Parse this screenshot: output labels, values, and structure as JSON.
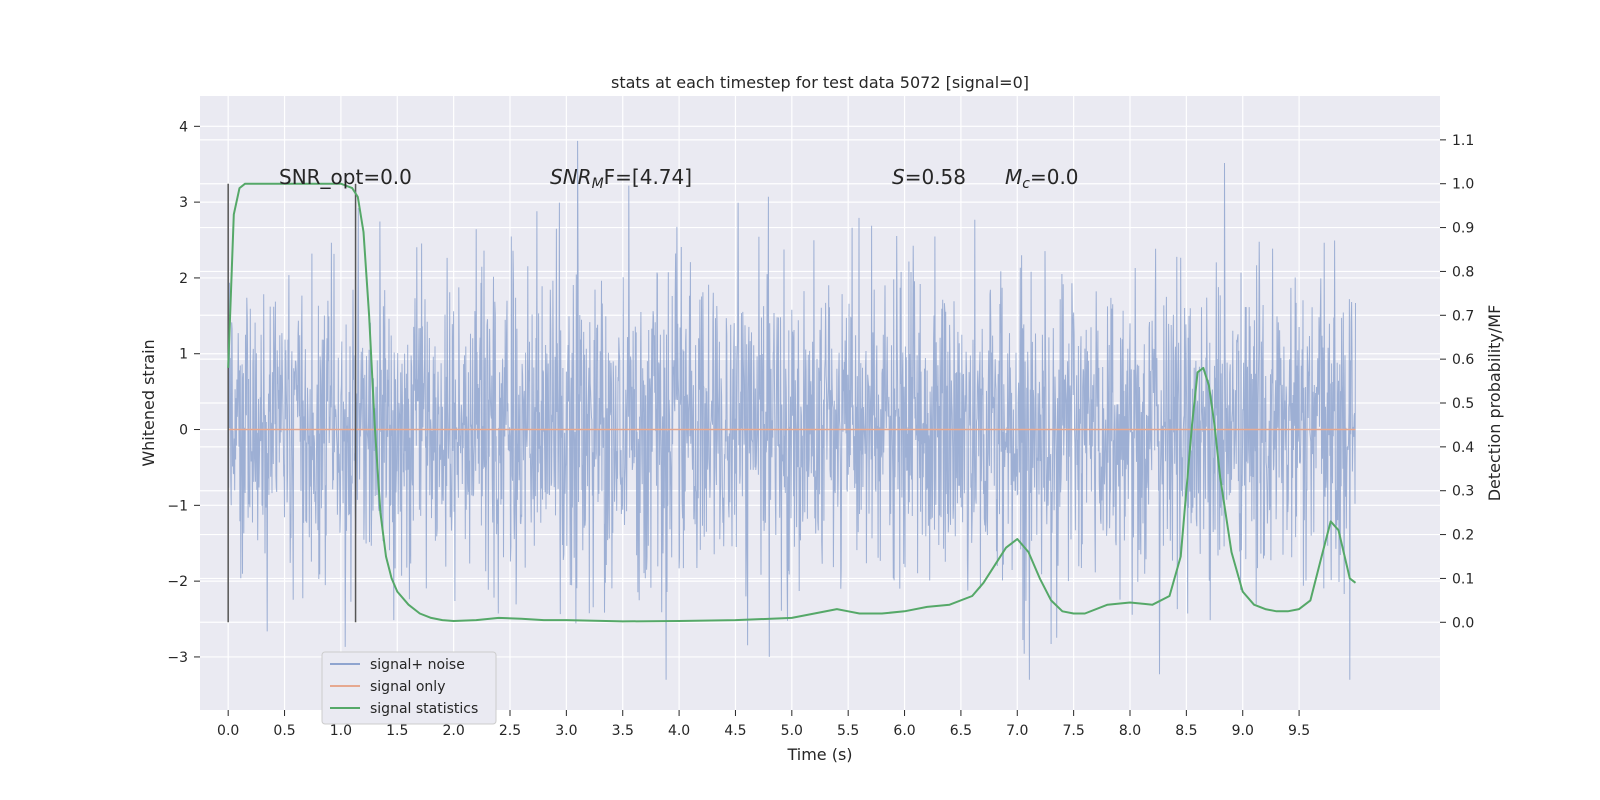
{
  "chart_data": {
    "type": "line",
    "title": "stats at each timestep for test data 5072 [signal=0]",
    "xlabel": "Time (s)",
    "ylabel_left": "Whitened strain",
    "ylabel_right": "Detection probability/MF",
    "xlim": [
      -0.25,
      10.75
    ],
    "ylim_left": [
      -3.7,
      4.4
    ],
    "ylim_right": [
      -0.2,
      1.2
    ],
    "x_ticks": [
      0.0,
      0.5,
      1.0,
      1.5,
      2.0,
      2.5,
      3.0,
      3.5,
      4.0,
      4.5,
      5.0,
      5.5,
      6.0,
      6.5,
      7.0,
      7.5,
      8.0,
      8.5,
      9.0,
      9.5
    ],
    "x_tick_labels": [
      "0.0",
      "0.5",
      "1.0",
      "1.5",
      "2.0",
      "2.5",
      "3.0",
      "3.5",
      "4.0",
      "4.5",
      "5.0",
      "5.5",
      "6.0",
      "6.5",
      "7.0",
      "7.5",
      "8.0",
      "8.5",
      "9.0",
      "9.5"
    ],
    "y_left_ticks": [
      -3,
      -2,
      -1,
      0,
      1,
      2,
      3,
      4
    ],
    "y_left_tick_labels": [
      "−3",
      "−2",
      "−1",
      "0",
      "1",
      "2",
      "3",
      "4"
    ],
    "y_right_ticks": [
      0.0,
      0.1,
      0.2,
      0.3,
      0.4,
      0.5,
      0.6,
      0.7,
      0.8,
      0.9,
      1.0,
      1.1
    ],
    "y_right_tick_labels": [
      "0.0",
      "0.1",
      "0.2",
      "0.3",
      "0.4",
      "0.5",
      "0.6",
      "0.7",
      "0.8",
      "0.9",
      "1.0",
      "1.1"
    ],
    "grid": true,
    "legend_position": "lower-left",
    "annotations": {
      "snr_opt": "SNR_opt=0.0",
      "snr_mf_main": "SNR",
      "snr_mf_sub": "M",
      "snr_mf_rest": "F=[4.74]",
      "s_main": "S",
      "s_rest": "=0.58",
      "mc_main": "M",
      "mc_sub": "c",
      "mc_rest": "=0.0"
    },
    "series": [
      {
        "name": "signal+ noise",
        "axis": "left",
        "color": "#8fa4cf",
        "x_range": [
          0.0,
          10.0
        ],
        "approx_std": 1.0,
        "approx_range": [
          -3.3,
          4.05
        ]
      },
      {
        "name": "signal only",
        "axis": "left",
        "color": "#e6a88f",
        "x": [
          0.0,
          10.0
        ],
        "y": [
          0.0,
          0.0
        ]
      },
      {
        "name": "signal statistics",
        "axis": "right",
        "color": "#55a868",
        "x": [
          0.0,
          0.05,
          0.1,
          0.15,
          0.2,
          0.3,
          0.5,
          0.7,
          0.9,
          1.0,
          1.1,
          1.15,
          1.2,
          1.25,
          1.3,
          1.35,
          1.4,
          1.45,
          1.5,
          1.6,
          1.7,
          1.8,
          1.9,
          2.0,
          2.2,
          2.4,
          2.6,
          2.8,
          3.0,
          3.5,
          4.0,
          4.5,
          5.0,
          5.2,
          5.4,
          5.5,
          5.6,
          5.8,
          6.0,
          6.2,
          6.4,
          6.6,
          6.7,
          6.8,
          6.9,
          7.0,
          7.1,
          7.2,
          7.3,
          7.4,
          7.5,
          7.6,
          7.8,
          8.0,
          8.2,
          8.35,
          8.45,
          8.55,
          8.6,
          8.65,
          8.7,
          8.75,
          8.8,
          8.9,
          9.0,
          9.1,
          9.2,
          9.3,
          9.4,
          9.5,
          9.6,
          9.7,
          9.78,
          9.85,
          9.95,
          10.0
        ],
        "y": [
          0.58,
          0.93,
          0.99,
          1.0,
          1.0,
          1.0,
          1.0,
          1.0,
          1.0,
          1.0,
          0.99,
          0.97,
          0.89,
          0.7,
          0.45,
          0.25,
          0.15,
          0.1,
          0.07,
          0.04,
          0.02,
          0.01,
          0.005,
          0.003,
          0.005,
          0.01,
          0.008,
          0.005,
          0.005,
          0.002,
          0.003,
          0.005,
          0.01,
          0.02,
          0.03,
          0.025,
          0.02,
          0.02,
          0.025,
          0.035,
          0.04,
          0.06,
          0.09,
          0.13,
          0.17,
          0.19,
          0.16,
          0.1,
          0.05,
          0.025,
          0.02,
          0.02,
          0.04,
          0.045,
          0.04,
          0.06,
          0.15,
          0.45,
          0.57,
          0.58,
          0.54,
          0.45,
          0.33,
          0.16,
          0.07,
          0.04,
          0.03,
          0.025,
          0.025,
          0.03,
          0.05,
          0.15,
          0.23,
          0.21,
          0.1,
          0.09
        ]
      }
    ],
    "vertical_markers": [
      {
        "x": 0.0,
        "y_range": [
          0.0,
          1.0
        ]
      },
      {
        "x": 1.13,
        "y_range": [
          0.0,
          1.0
        ]
      }
    ]
  }
}
